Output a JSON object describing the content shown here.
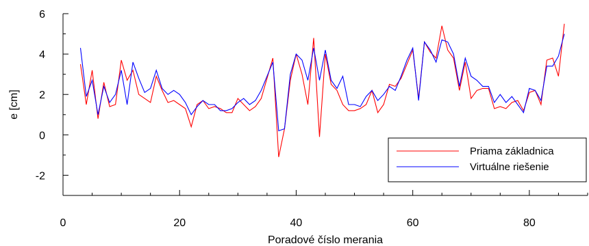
{
  "chart_data": {
    "type": "line",
    "xlabel": "Poradové číslo merania",
    "ylabel": "e [cm]",
    "xlim": [
      0,
      90
    ],
    "ylim": [
      -3,
      6
    ],
    "x_ticks": [
      0,
      20,
      40,
      60,
      80
    ],
    "y_ticks": [
      -2,
      0,
      2,
      4,
      6
    ],
    "x_tick_labels": [
      "0",
      "20",
      "40",
      "60",
      "80"
    ],
    "y_tick_labels": [
      "-2",
      "0",
      "2",
      "4",
      "6"
    ],
    "grid": false,
    "legend_position": "bottom-right",
    "x": [
      3,
      4,
      5,
      6,
      7,
      8,
      9,
      10,
      11,
      12,
      13,
      14,
      15,
      16,
      17,
      18,
      19,
      20,
      21,
      22,
      23,
      24,
      25,
      26,
      27,
      28,
      29,
      30,
      31,
      32,
      33,
      34,
      35,
      36,
      37,
      38,
      39,
      40,
      41,
      42,
      43,
      44,
      45,
      46,
      47,
      48,
      49,
      50,
      51,
      52,
      53,
      54,
      55,
      56,
      57,
      58,
      59,
      60,
      61,
      62,
      63,
      64,
      65,
      66,
      67,
      68,
      69,
      70,
      71,
      72,
      73,
      74,
      75,
      76,
      77,
      78,
      79,
      80,
      81,
      82,
      83,
      84,
      85,
      86
    ],
    "series": [
      {
        "name": "Priama základnica",
        "color": "#ff0000",
        "values": [
          3.5,
          1.5,
          3.2,
          0.8,
          2.6,
          1.4,
          1.5,
          3.7,
          2.7,
          3.2,
          2.0,
          1.8,
          1.6,
          2.9,
          2.2,
          1.6,
          1.7,
          1.5,
          1.3,
          0.4,
          1.5,
          1.7,
          1.3,
          1.4,
          1.3,
          1.1,
          1.1,
          1.8,
          1.5,
          1.2,
          1.4,
          1.8,
          2.8,
          3.8,
          -1.1,
          0.3,
          2.7,
          4.0,
          3.0,
          1.5,
          4.8,
          -0.1,
          4.0,
          2.5,
          2.2,
          1.5,
          1.2,
          1.2,
          1.3,
          1.5,
          2.2,
          1.1,
          1.5,
          2.5,
          2.4,
          2.8,
          3.5,
          4.2,
          1.8,
          4.6,
          4.1,
          3.8,
          5.4,
          4.2,
          3.8,
          2.2,
          3.6,
          1.8,
          2.2,
          2.3,
          2.3,
          1.3,
          1.4,
          1.3,
          1.6,
          1.7,
          1.2,
          2.1,
          2.2,
          1.5,
          3.7,
          3.8,
          2.9,
          5.5
        ]
      },
      {
        "name": "Virtuálne riešenie",
        "color": "#0000ff",
        "values": [
          4.3,
          1.9,
          2.7,
          1.0,
          2.4,
          1.6,
          2.0,
          3.2,
          1.5,
          3.6,
          2.8,
          2.1,
          2.3,
          3.2,
          2.3,
          2.0,
          2.2,
          2.0,
          1.6,
          1.0,
          1.4,
          1.7,
          1.5,
          1.5,
          1.2,
          1.2,
          1.3,
          1.6,
          1.8,
          1.5,
          1.7,
          2.2,
          2.9,
          3.6,
          0.2,
          0.3,
          3.0,
          4.0,
          3.7,
          2.7,
          4.3,
          2.7,
          4.2,
          2.7,
          2.3,
          2.9,
          1.5,
          1.5,
          1.4,
          1.9,
          2.2,
          1.7,
          2.0,
          2.4,
          2.2,
          2.9,
          3.7,
          4.3,
          1.7,
          4.6,
          4.2,
          3.6,
          4.7,
          4.6,
          4.0,
          2.4,
          3.8,
          2.9,
          2.7,
          2.4,
          2.4,
          1.6,
          2.0,
          1.6,
          1.9,
          1.5,
          1.1,
          2.3,
          2.2,
          1.7,
          3.4,
          3.4,
          3.9,
          5.0
        ]
      }
    ]
  }
}
